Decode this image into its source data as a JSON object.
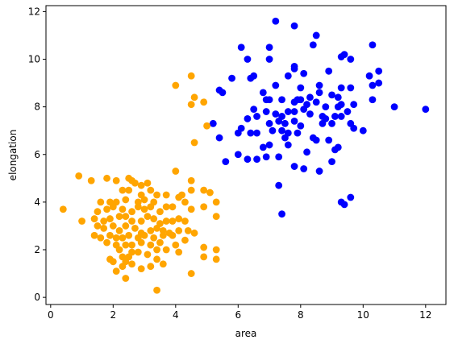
{
  "chart_data": {
    "type": "scatter",
    "xlabel": "area",
    "ylabel": "elongation",
    "xlim": [
      -0.15,
      12.65
    ],
    "ylim": [
      -0.3,
      12.25
    ],
    "xticks": [
      0,
      2,
      4,
      6,
      8,
      10,
      12
    ],
    "yticks": [
      0,
      2,
      4,
      6,
      8,
      10,
      12
    ],
    "grid": false,
    "series": [
      {
        "color": "#0000ff",
        "points": [
          [
            7.2,
            11.6
          ],
          [
            7.8,
            11.4
          ],
          [
            8.5,
            11.0
          ],
          [
            10.3,
            10.6
          ],
          [
            6.1,
            10.5
          ],
          [
            7.0,
            10.5
          ],
          [
            8.4,
            10.6
          ],
          [
            6.3,
            10.0
          ],
          [
            7.0,
            10.0
          ],
          [
            9.3,
            10.1
          ],
          [
            9.4,
            10.2
          ],
          [
            9.6,
            10.0
          ],
          [
            7.8,
            9.6
          ],
          [
            7.8,
            9.7
          ],
          [
            8.9,
            9.5
          ],
          [
            10.5,
            9.5
          ],
          [
            5.8,
            9.2
          ],
          [
            6.4,
            9.2
          ],
          [
            6.5,
            9.3
          ],
          [
            7.6,
            9.3
          ],
          [
            8.1,
            9.4
          ],
          [
            10.2,
            9.3
          ],
          [
            10.5,
            9.0
          ],
          [
            10.3,
            8.9
          ],
          [
            5.4,
            8.7
          ],
          [
            5.5,
            8.6
          ],
          [
            6.8,
            8.6
          ],
          [
            7.2,
            8.9
          ],
          [
            8.0,
            8.8
          ],
          [
            8.6,
            8.9
          ],
          [
            9.3,
            8.8
          ],
          [
            9.6,
            8.8
          ],
          [
            8.3,
            8.4
          ],
          [
            9.0,
            8.5
          ],
          [
            9.2,
            8.4
          ],
          [
            8.6,
            8.6
          ],
          [
            6.9,
            8.3
          ],
          [
            7.0,
            8.3
          ],
          [
            7.4,
            8.3
          ],
          [
            7.8,
            8.2
          ],
          [
            7.9,
            8.3
          ],
          [
            8.0,
            8.3
          ],
          [
            8.2,
            8.1
          ],
          [
            8.5,
            8.2
          ],
          [
            8.8,
            8.0
          ],
          [
            9.2,
            8.0
          ],
          [
            9.3,
            8.1
          ],
          [
            10.3,
            8.3
          ],
          [
            9.7,
            8.1
          ],
          [
            11.0,
            8.0
          ],
          [
            12.0,
            7.9
          ],
          [
            6.5,
            7.9
          ],
          [
            6.9,
            7.8
          ],
          [
            7.2,
            7.7
          ],
          [
            7.4,
            7.6
          ],
          [
            7.6,
            7.8
          ],
          [
            7.8,
            7.8
          ],
          [
            8.1,
            7.9
          ],
          [
            8.3,
            7.7
          ],
          [
            8.7,
            7.6
          ],
          [
            8.8,
            7.5
          ],
          [
            9.1,
            7.6
          ],
          [
            9.3,
            7.6
          ],
          [
            9.5,
            7.8
          ],
          [
            6.3,
            7.5
          ],
          [
            6.6,
            7.6
          ],
          [
            7.0,
            7.3
          ],
          [
            7.3,
            7.4
          ],
          [
            7.5,
            7.3
          ],
          [
            7.8,
            7.4
          ],
          [
            8.0,
            7.2
          ],
          [
            8.7,
            7.3
          ],
          [
            9.0,
            7.3
          ],
          [
            9.6,
            7.3
          ],
          [
            5.2,
            7.3
          ],
          [
            6.1,
            7.1
          ],
          [
            6.4,
            6.9
          ],
          [
            6.6,
            6.9
          ],
          [
            7.1,
            7.0
          ],
          [
            7.4,
            7.0
          ],
          [
            7.6,
            6.9
          ],
          [
            7.9,
            6.9
          ],
          [
            9.7,
            7.1
          ],
          [
            10.0,
            7.0
          ],
          [
            6.0,
            6.9
          ],
          [
            7.5,
            6.7
          ],
          [
            8.4,
            6.7
          ],
          [
            8.5,
            6.6
          ],
          [
            8.9,
            6.6
          ],
          [
            7.0,
            6.4
          ],
          [
            7.6,
            6.4
          ],
          [
            6.8,
            6.3
          ],
          [
            9.1,
            6.2
          ],
          [
            9.2,
            6.3
          ],
          [
            5.4,
            6.7
          ],
          [
            6.0,
            6.0
          ],
          [
            6.3,
            5.8
          ],
          [
            6.6,
            5.8
          ],
          [
            6.9,
            5.9
          ],
          [
            7.3,
            5.9
          ],
          [
            5.6,
            5.7
          ],
          [
            7.8,
            5.5
          ],
          [
            8.1,
            5.4
          ],
          [
            8.6,
            5.3
          ],
          [
            9.0,
            5.7
          ],
          [
            7.3,
            4.7
          ],
          [
            9.3,
            4.0
          ],
          [
            9.4,
            3.9
          ],
          [
            9.6,
            4.2
          ],
          [
            7.4,
            3.5
          ],
          [
            8.2,
            6.1
          ]
        ]
      },
      {
        "color": "#ffa500",
        "points": [
          [
            4.5,
            9.3
          ],
          [
            4.0,
            8.9
          ],
          [
            4.6,
            8.4
          ],
          [
            4.5,
            8.1
          ],
          [
            4.9,
            8.2
          ],
          [
            5.0,
            7.2
          ],
          [
            4.6,
            6.5
          ],
          [
            4.0,
            5.3
          ],
          [
            0.9,
            5.1
          ],
          [
            1.3,
            4.9
          ],
          [
            1.8,
            5.0
          ],
          [
            2.1,
            4.9
          ],
          [
            2.5,
            5.0
          ],
          [
            2.6,
            4.9
          ],
          [
            2.7,
            4.8
          ],
          [
            2.9,
            4.7
          ],
          [
            3.1,
            4.8
          ],
          [
            4.5,
            4.9
          ],
          [
            2.3,
            4.5
          ],
          [
            2.5,
            4.5
          ],
          [
            3.2,
            4.5
          ],
          [
            3.4,
            4.3
          ],
          [
            3.7,
            4.3
          ],
          [
            4.2,
            4.3
          ],
          [
            4.5,
            4.5
          ],
          [
            4.9,
            4.5
          ],
          [
            5.1,
            4.4
          ],
          [
            2.9,
            4.3
          ],
          [
            1.6,
            4.0
          ],
          [
            1.9,
            4.0
          ],
          [
            2.1,
            4.0
          ],
          [
            2.4,
            4.1
          ],
          [
            2.8,
            4.0
          ],
          [
            3.0,
            4.1
          ],
          [
            3.3,
            4.0
          ],
          [
            4.1,
            4.2
          ],
          [
            4.3,
            4.0
          ],
          [
            5.3,
            4.0
          ],
          [
            0.4,
            3.7
          ],
          [
            1.5,
            3.6
          ],
          [
            1.8,
            3.7
          ],
          [
            2.0,
            3.8
          ],
          [
            2.3,
            3.7
          ],
          [
            2.6,
            3.6
          ],
          [
            2.8,
            3.8
          ],
          [
            3.0,
            3.7
          ],
          [
            3.2,
            3.8
          ],
          [
            3.5,
            3.6
          ],
          [
            3.7,
            3.8
          ],
          [
            3.9,
            3.8
          ],
          [
            4.5,
            3.7
          ],
          [
            4.9,
            3.8
          ],
          [
            1.0,
            3.2
          ],
          [
            1.4,
            3.3
          ],
          [
            1.7,
            3.2
          ],
          [
            1.9,
            3.3
          ],
          [
            2.2,
            3.4
          ],
          [
            2.4,
            3.4
          ],
          [
            2.6,
            3.2
          ],
          [
            2.9,
            3.2
          ],
          [
            3.1,
            3.4
          ],
          [
            3.3,
            3.3
          ],
          [
            3.5,
            3.1
          ],
          [
            3.7,
            3.2
          ],
          [
            3.9,
            3.2
          ],
          [
            4.1,
            3.3
          ],
          [
            4.3,
            3.2
          ],
          [
            5.3,
            3.4
          ],
          [
            1.5,
            3.0
          ],
          [
            1.7,
            2.9
          ],
          [
            2.0,
            3.0
          ],
          [
            2.2,
            2.8
          ],
          [
            2.4,
            3.0
          ],
          [
            2.7,
            2.9
          ],
          [
            2.9,
            2.7
          ],
          [
            3.2,
            2.8
          ],
          [
            3.4,
            2.9
          ],
          [
            3.6,
            2.8
          ],
          [
            3.8,
            2.7
          ],
          [
            4.1,
            2.8
          ],
          [
            4.4,
            2.8
          ],
          [
            4.6,
            2.7
          ],
          [
            1.4,
            2.6
          ],
          [
            1.6,
            2.5
          ],
          [
            1.9,
            2.6
          ],
          [
            2.1,
            2.5
          ],
          [
            2.3,
            2.5
          ],
          [
            2.5,
            2.6
          ],
          [
            2.8,
            2.5
          ],
          [
            3.0,
            2.6
          ],
          [
            3.3,
            2.5
          ],
          [
            3.6,
            2.6
          ],
          [
            3.9,
            2.6
          ],
          [
            4.3,
            2.4
          ],
          [
            1.8,
            2.3
          ],
          [
            2.1,
            2.2
          ],
          [
            2.4,
            2.2
          ],
          [
            2.6,
            2.2
          ],
          [
            2.9,
            2.3
          ],
          [
            3.2,
            2.2
          ],
          [
            3.5,
            2.3
          ],
          [
            3.7,
            2.0
          ],
          [
            4.0,
            2.2
          ],
          [
            2.2,
            2.0
          ],
          [
            2.6,
            1.9
          ],
          [
            2.8,
            1.9
          ],
          [
            3.4,
            2.0
          ],
          [
            4.1,
            1.9
          ],
          [
            4.9,
            2.1
          ],
          [
            5.3,
            2.0
          ],
          [
            2.3,
            1.7
          ],
          [
            2.5,
            1.7
          ],
          [
            3.1,
            1.8
          ],
          [
            3.4,
            1.6
          ],
          [
            1.9,
            1.6
          ],
          [
            2.0,
            1.5
          ],
          [
            2.4,
            1.5
          ],
          [
            2.6,
            1.4
          ],
          [
            3.2,
            1.3
          ],
          [
            3.6,
            1.4
          ],
          [
            4.9,
            1.7
          ],
          [
            5.3,
            1.6
          ],
          [
            2.1,
            1.1
          ],
          [
            2.3,
            1.3
          ],
          [
            2.9,
            1.2
          ],
          [
            2.4,
            0.8
          ],
          [
            4.5,
            1.0
          ],
          [
            3.4,
            0.3
          ]
        ]
      }
    ]
  }
}
